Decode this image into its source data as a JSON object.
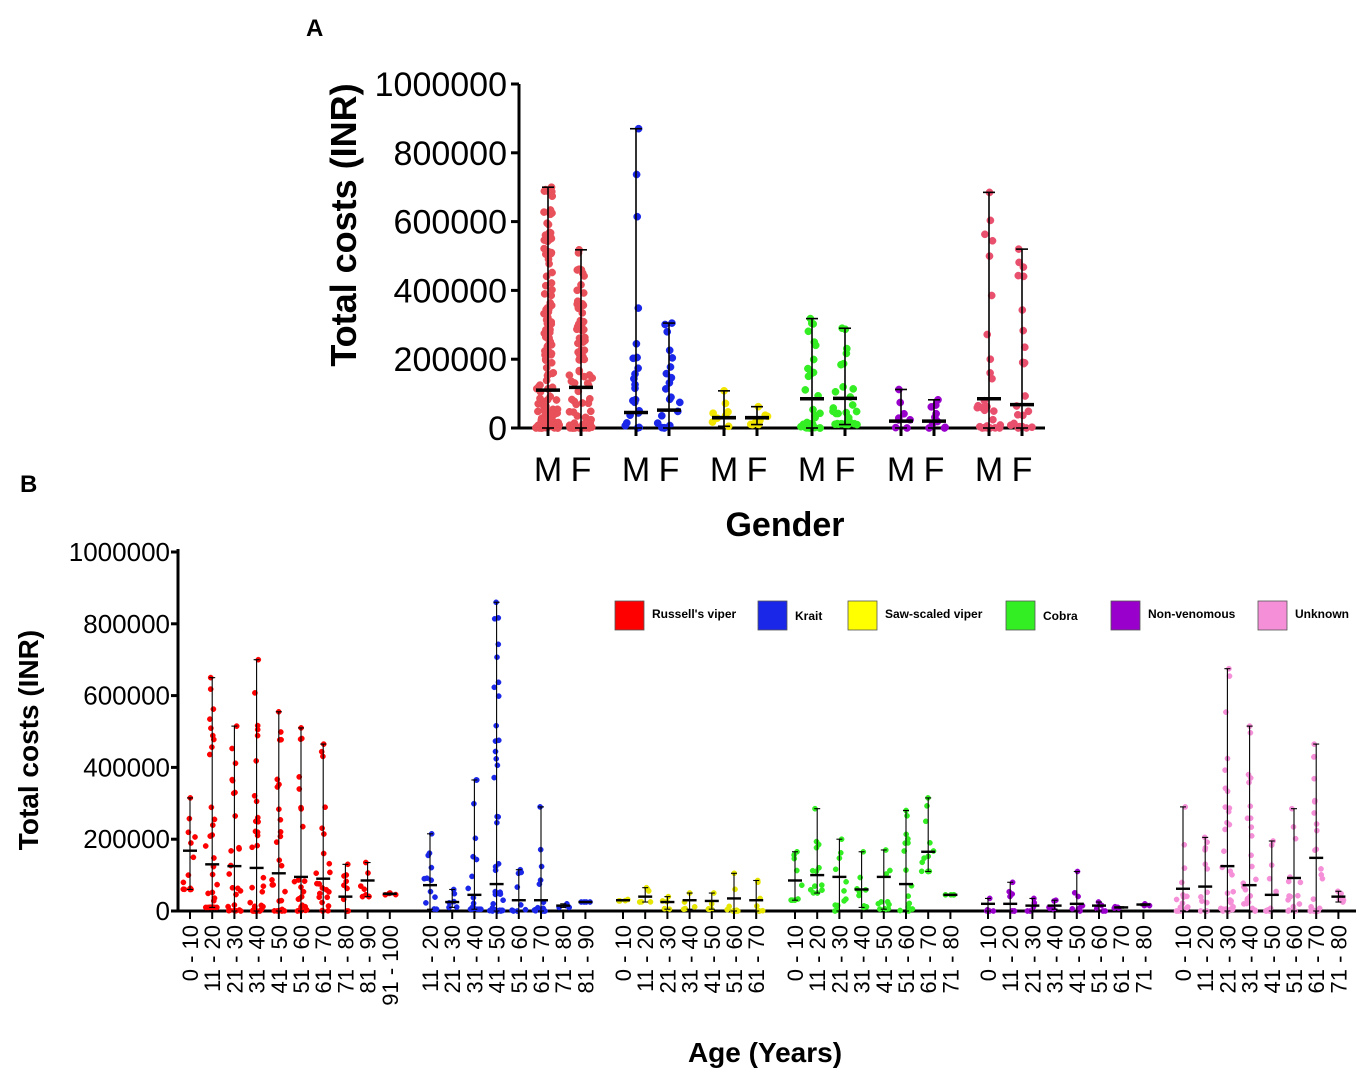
{
  "colors": {
    "russells_viper": "#ff0000",
    "krait": "#1a27e8",
    "saw_scaled_viper": "#ffff00",
    "cobra": "#33ee22",
    "non_venomous": "#9900cc",
    "unknown": "#f58fd8"
  },
  "chart_data": [
    {
      "type": "scatter",
      "panel": "A",
      "ylabel": "Total costs (INR)",
      "xlabel": "Gender",
      "ylim": [
        0,
        1000000
      ],
      "yticks": [
        "0",
        "200000",
        "400000",
        "600000",
        "800000",
        "1000000"
      ],
      "groups": [
        {
          "species": "Russell's viper",
          "color": "#e8505a",
          "data": [
            {
              "gender": "M",
              "median": 110000,
              "min": 0,
              "max": 700000
            },
            {
              "gender": "F",
              "median": 118000,
              "min": 0,
              "max": 518000
            }
          ]
        },
        {
          "species": "Krait",
          "color": "#1a27e8",
          "data": [
            {
              "gender": "M",
              "median": 45000,
              "min": 0,
              "max": 870000
            },
            {
              "gender": "F",
              "median": 52000,
              "min": 0,
              "max": 305000
            }
          ]
        },
        {
          "species": "Saw-scaled viper",
          "color": "#f2e600",
          "data": [
            {
              "gender": "M",
              "median": 30000,
              "min": 5000,
              "max": 108000
            },
            {
              "gender": "F",
              "median": 30000,
              "min": 10000,
              "max": 62000
            }
          ]
        },
        {
          "species": "Cobra",
          "color": "#33ee22",
          "data": [
            {
              "gender": "M",
              "median": 85000,
              "min": 0,
              "max": 318000
            },
            {
              "gender": "F",
              "median": 86000,
              "min": 10000,
              "max": 290000
            }
          ]
        },
        {
          "species": "Non-venomous",
          "color": "#9900cc",
          "data": [
            {
              "gender": "M",
              "median": 20000,
              "min": 0,
              "max": 112000
            },
            {
              "gender": "F",
              "median": 20000,
              "min": 0,
              "max": 82000
            }
          ]
        },
        {
          "species": "Unknown",
          "color": "#e8506e",
          "data": [
            {
              "gender": "M",
              "median": 85000,
              "min": 0,
              "max": 685000
            },
            {
              "gender": "F",
              "median": 68000,
              "min": 0,
              "max": 520000
            }
          ]
        }
      ]
    },
    {
      "type": "scatter",
      "panel": "B",
      "ylabel": "Total costs (INR)",
      "xlabel": "Age (Years)",
      "ylim": [
        0,
        1000000
      ],
      "yticks": [
        "0",
        "200000",
        "400000",
        "600000",
        "800000",
        "1000000"
      ],
      "legend": [
        "Russell's viper",
        "Krait",
        "Saw-scaled viper",
        "Cobra",
        "Non-venomous",
        "Unknown"
      ],
      "legend_position": "top-right",
      "groups": [
        {
          "species": "Russell's viper",
          "color": "#ff0000",
          "data": [
            {
              "age": "0 - 10",
              "median": 168000,
              "min": 60000,
              "max": 315000
            },
            {
              "age": "11 - 20",
              "median": 130000,
              "min": 10000,
              "max": 650000
            },
            {
              "age": "21 - 30",
              "median": 125000,
              "min": 0,
              "max": 515000
            },
            {
              "age": "31 - 40",
              "median": 120000,
              "min": 0,
              "max": 700000
            },
            {
              "age": "41 - 50",
              "median": 105000,
              "min": 0,
              "max": 555000
            },
            {
              "age": "51 - 60",
              "median": 95000,
              "min": 0,
              "max": 510000
            },
            {
              "age": "61 - 70",
              "median": 90000,
              "min": 0,
              "max": 465000
            },
            {
              "age": "71 - 80",
              "median": 40000,
              "min": 0,
              "max": 130000
            },
            {
              "age": "81 - 90",
              "median": 85000,
              "min": 40000,
              "max": 135000
            },
            {
              "age": "91 - 100",
              "median": 48000,
              "min": 45000,
              "max": 50000
            }
          ]
        },
        {
          "species": "Krait",
          "color": "#1a27e8",
          "data": [
            {
              "age": "11 - 20",
              "median": 72000,
              "min": 5000,
              "max": 215000
            },
            {
              "age": "21 - 30",
              "median": 25000,
              "min": 10000,
              "max": 60000
            },
            {
              "age": "31 - 40",
              "median": 45000,
              "min": 5000,
              "max": 365000
            },
            {
              "age": "41 - 50",
              "median": 75000,
              "min": 0,
              "max": 860000
            },
            {
              "age": "51 - 60",
              "median": 30000,
              "min": 0,
              "max": 115000
            },
            {
              "age": "61 - 70",
              "median": 30000,
              "min": 0,
              "max": 290000
            },
            {
              "age": "71 - 80",
              "median": 15000,
              "min": 10000,
              "max": 20000
            },
            {
              "age": "81 - 90",
              "median": 25000,
              "min": 25000,
              "max": 25000
            }
          ]
        },
        {
          "species": "Saw-scaled viper",
          "color": "#e6e600",
          "data": [
            {
              "age": "0 - 10",
              "median": 30000,
              "min": 28000,
              "max": 32000
            },
            {
              "age": "11 - 20",
              "median": 40000,
              "min": 25000,
              "max": 65000
            },
            {
              "age": "21 - 30",
              "median": 25000,
              "min": 5000,
              "max": 40000
            },
            {
              "age": "31 - 40",
              "median": 30000,
              "min": 5000,
              "max": 50000
            },
            {
              "age": "41 - 50",
              "median": 28000,
              "min": 5000,
              "max": 50000
            },
            {
              "age": "51 - 60",
              "median": 35000,
              "min": 0,
              "max": 105000
            },
            {
              "age": "61 - 70",
              "median": 30000,
              "min": 0,
              "max": 85000
            }
          ]
        },
        {
          "species": "Cobra",
          "color": "#33ee22",
          "data": [
            {
              "age": "0 - 10",
              "median": 85000,
              "min": 30000,
              "max": 165000
            },
            {
              "age": "11 - 20",
              "median": 100000,
              "min": 50000,
              "max": 285000
            },
            {
              "age": "21 - 30",
              "median": 95000,
              "min": 0,
              "max": 200000
            },
            {
              "age": "31 - 40",
              "median": 60000,
              "min": 10000,
              "max": 165000
            },
            {
              "age": "41 - 50",
              "median": 95000,
              "min": 5000,
              "max": 170000
            },
            {
              "age": "51 - 60",
              "median": 75000,
              "min": 0,
              "max": 280000
            },
            {
              "age": "61 - 70",
              "median": 165000,
              "min": 110000,
              "max": 315000
            },
            {
              "age": "71 - 80",
              "median": 45000,
              "min": 45000,
              "max": 45000
            }
          ]
        },
        {
          "species": "Non-venomous",
          "color": "#9900cc",
          "data": [
            {
              "age": "0 - 10",
              "median": 20000,
              "min": 0,
              "max": 35000
            },
            {
              "age": "11 - 20",
              "median": 20000,
              "min": 0,
              "max": 80000
            },
            {
              "age": "21 - 30",
              "median": 15000,
              "min": 0,
              "max": 35000
            },
            {
              "age": "31 - 40",
              "median": 15000,
              "min": 5000,
              "max": 30000
            },
            {
              "age": "41 - 50",
              "median": 20000,
              "min": 0,
              "max": 110000
            },
            {
              "age": "51 - 60",
              "median": 15000,
              "min": 0,
              "max": 25000
            },
            {
              "age": "61 - 70",
              "median": 10000,
              "min": 8000,
              "max": 12000
            },
            {
              "age": "71 - 80",
              "median": 18000,
              "min": 15000,
              "max": 20000
            }
          ]
        },
        {
          "species": "Unknown",
          "color": "#f58fd8",
          "data": [
            {
              "age": "0 - 10",
              "median": 62000,
              "min": 0,
              "max": 290000
            },
            {
              "age": "11 - 20",
              "median": 68000,
              "min": 0,
              "max": 205000
            },
            {
              "age": "21 - 30",
              "median": 125000,
              "min": 0,
              "max": 675000
            },
            {
              "age": "31 - 40",
              "median": 72000,
              "min": 0,
              "max": 515000
            },
            {
              "age": "41 - 50",
              "median": 45000,
              "min": 0,
              "max": 195000
            },
            {
              "age": "51 - 60",
              "median": 92000,
              "min": 0,
              "max": 285000
            },
            {
              "age": "61 - 70",
              "median": 148000,
              "min": 0,
              "max": 465000
            },
            {
              "age": "71 - 80",
              "median": 40000,
              "min": 25000,
              "max": 55000
            }
          ]
        }
      ]
    }
  ],
  "panel_labels": [
    "A",
    "B"
  ]
}
